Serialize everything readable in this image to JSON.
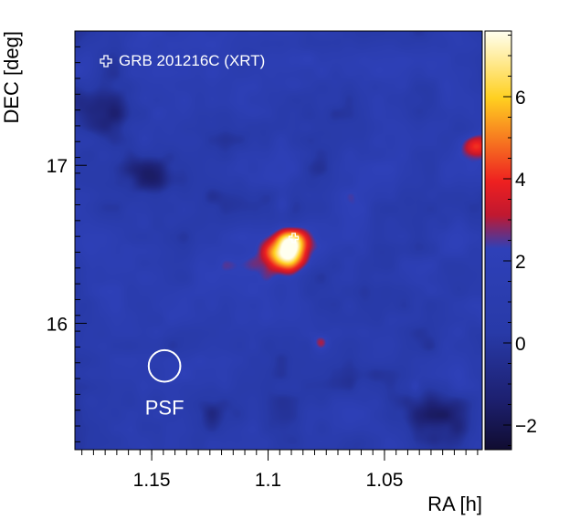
{
  "chart_data": {
    "type": "heatmap",
    "title": "",
    "xlabel": "RA [h]",
    "ylabel": "DEC [deg]",
    "xlim": [
      1.183,
      1.008
    ],
    "ylim": [
      15.2,
      17.85
    ],
    "x_reversed": true,
    "x_ticks": [
      {
        "value": 1.15,
        "label": "1.15"
      },
      {
        "value": 1.1,
        "label": "1.1"
      },
      {
        "value": 1.05,
        "label": "1.05"
      }
    ],
    "y_ticks": [
      {
        "value": 16,
        "label": "16"
      },
      {
        "value": 17,
        "label": "17"
      }
    ],
    "colorbar": {
      "range": [
        -2.6,
        7.6
      ],
      "ticks": [
        {
          "value": -2,
          "label": "−2"
        },
        {
          "value": 0,
          "label": "0"
        },
        {
          "value": 2,
          "label": "2"
        },
        {
          "value": 4,
          "label": "4"
        },
        {
          "value": 6,
          "label": "6"
        }
      ],
      "colors": [
        "#100c30",
        "#1d2070",
        "#283aa8",
        "#2e40b8",
        "#c01830",
        "#ee2020",
        "#ffd020",
        "#fffff0"
      ]
    },
    "background_value": 1.1,
    "hotspots": [
      {
        "ra": 1.0925,
        "dec": 16.45,
        "peak": 7.4,
        "sigma_ra": 0.0055,
        "sigma_dec": 0.075
      },
      {
        "ra": 1.0895,
        "dec": 16.54,
        "peak": 3.8,
        "sigma_ra": 0.004,
        "sigma_dec": 0.05
      },
      {
        "ra": 1.094,
        "dec": 16.77,
        "peak": 1.6,
        "sigma_ra": 0.0025,
        "sigma_dec": 0.05
      },
      {
        "ra": 1.0115,
        "dec": 17.12,
        "peak": 2.4,
        "sigma_ra": 0.004,
        "sigma_dec": 0.05
      },
      {
        "ra": 1.0775,
        "dec": 15.88,
        "peak": 2.1,
        "sigma_ra": 0.0025,
        "sigma_dec": 0.04
      },
      {
        "ra": 1.037,
        "dec": 15.6,
        "peak": 1.4,
        "sigma_ra": 0.0015,
        "sigma_dec": 0.03
      },
      {
        "ra": 1.168,
        "dec": 17.35,
        "peak": -2.0,
        "sigma_ra": 0.01,
        "sigma_dec": 0.12
      },
      {
        "ra": 1.15,
        "dec": 16.92,
        "peak": -1.6,
        "sigma_ra": 0.01,
        "sigma_dec": 0.12
      },
      {
        "ra": 1.03,
        "dec": 15.4,
        "peak": -1.8,
        "sigma_ra": 0.012,
        "sigma_dec": 0.13
      },
      {
        "ra": 1.06,
        "dec": 16.3,
        "peak": -1.2,
        "sigma_ra": 0.01,
        "sigma_dec": 0.15
      },
      {
        "ra": 1.13,
        "dec": 15.45,
        "peak": -1.4,
        "sigma_ra": 0.012,
        "sigma_dec": 0.12
      },
      {
        "ra": 1.075,
        "dec": 17.4,
        "peak": -1.0,
        "sigma_ra": 0.015,
        "sigma_dec": 0.15
      }
    ],
    "xrt_position": {
      "ra": 1.089,
      "dec": 16.54
    },
    "legend": {
      "label": "GRB 201216C (XRT)",
      "placement": "top-left"
    },
    "psf": {
      "label": "PSF",
      "ra": 1.1445,
      "dec": 15.73,
      "radius_deg": 0.1
    }
  }
}
